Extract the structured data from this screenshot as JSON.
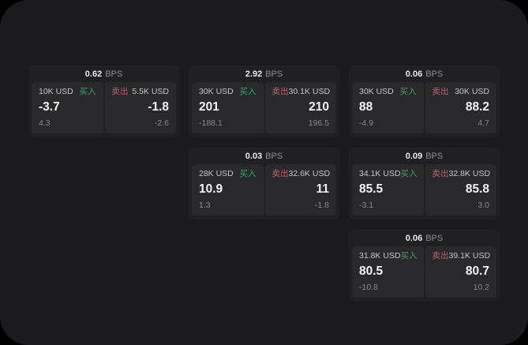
{
  "labels": {
    "bps_unit": "BPS",
    "buy": "买入",
    "sell": "卖出"
  },
  "colors": {
    "page_background": "#1b1b1d",
    "card_background": "#202022",
    "panel_background": "#29292b",
    "buy_green": "#3ba469",
    "sell_red": "#c95b69",
    "value_text": "#f4f4f4",
    "muted_text": "#8a8a8a"
  },
  "cards": [
    {
      "bps": "0.62",
      "buy": {
        "size": "10K USD",
        "value": "-3.7",
        "sub": "4.3"
      },
      "sell": {
        "size": "5.5K USD",
        "value": "-1.8",
        "sub": "-2.6"
      }
    },
    {
      "bps": "2.92",
      "buy": {
        "size": "30K USD",
        "value": "201",
        "sub": "-188.1"
      },
      "sell": {
        "size": "30.1K USD",
        "value": "210",
        "sub": "196.5"
      }
    },
    {
      "bps": "0.06",
      "buy": {
        "size": "30K USD",
        "value": "88",
        "sub": "-4.9"
      },
      "sell": {
        "size": "30K USD",
        "value": "88.2",
        "sub": "4.7"
      }
    },
    {
      "bps": "0.03",
      "buy": {
        "size": "28K USD",
        "value": "10.9",
        "sub": "1.3"
      },
      "sell": {
        "size": "32.6K USD",
        "value": "11",
        "sub": "-1.8"
      }
    },
    {
      "bps": "0.09",
      "buy": {
        "size": "34.1K USD",
        "value": "85.5",
        "sub": "-3.1"
      },
      "sell": {
        "size": "32.8K USD",
        "value": "85.8",
        "sub": "3.0"
      }
    },
    {
      "bps": "0.06",
      "buy": {
        "size": "31.8K USD",
        "value": "80.5",
        "sub": "-10.8"
      },
      "sell": {
        "size": "39.1K USD",
        "value": "80.7",
        "sub": "10.2"
      }
    }
  ]
}
